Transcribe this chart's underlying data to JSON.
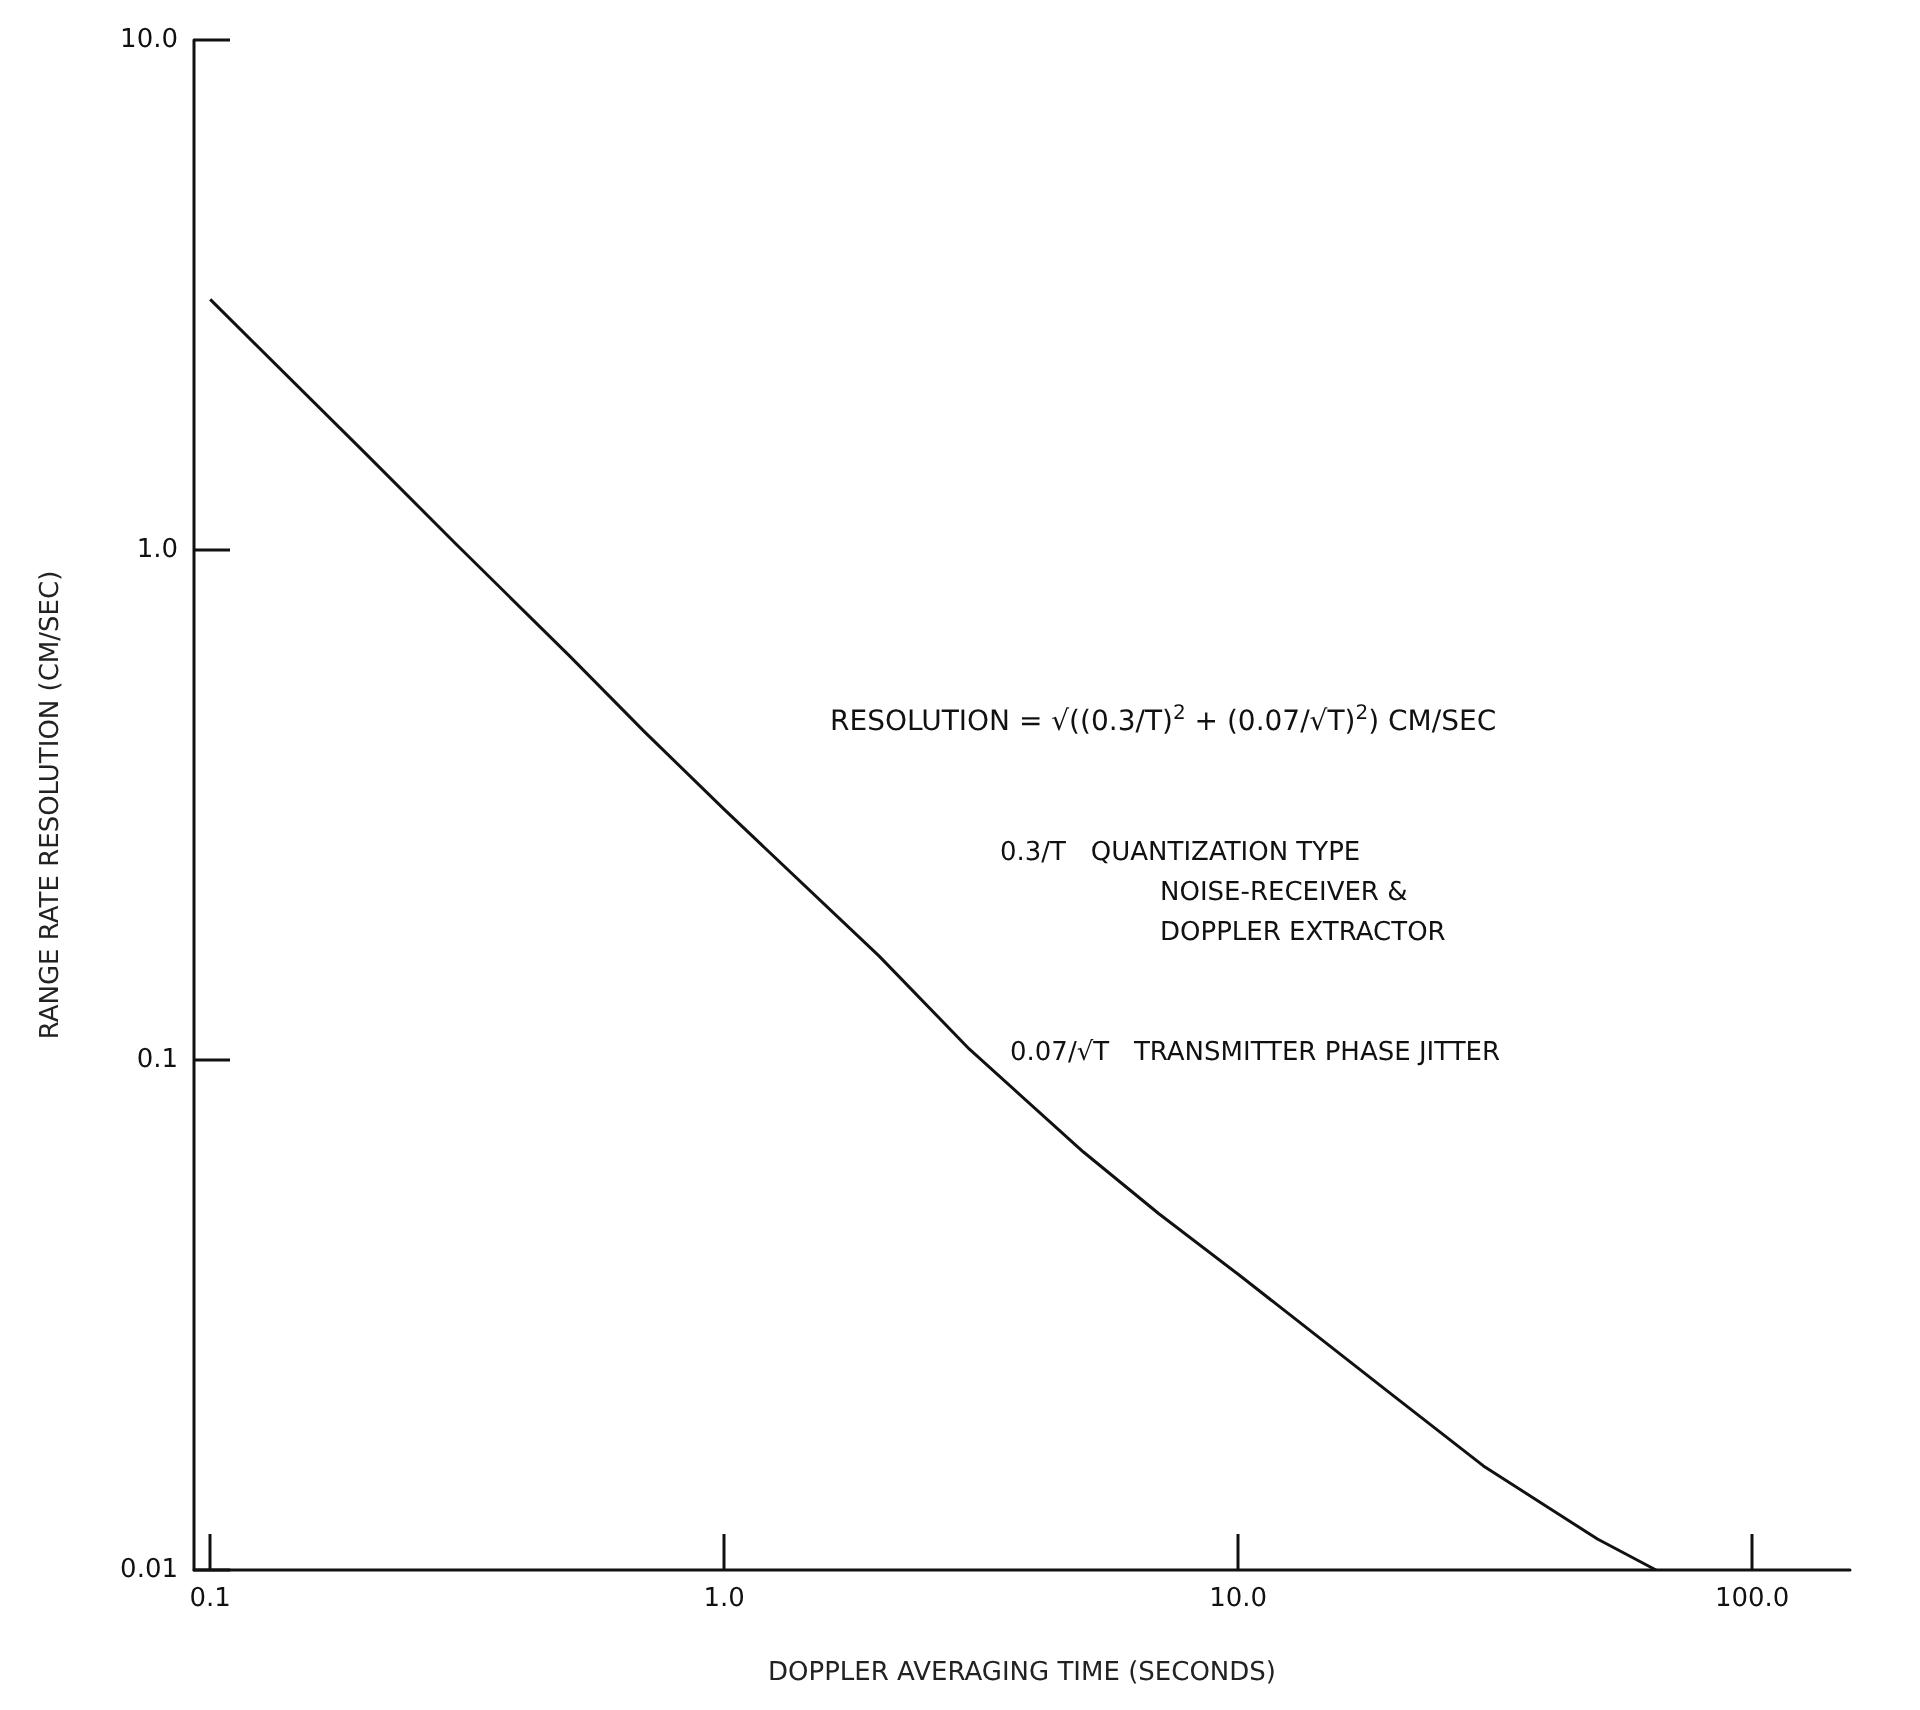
{
  "chart_data": {
    "type": "line",
    "xlabel": "DOPPLER AVERAGING TIME (SECONDS)",
    "ylabel": "RANGE RATE RESOLUTION (CM/SEC)",
    "log": "xy",
    "grid": false,
    "x": [
      0.1,
      0.2,
      0.3,
      0.5,
      0.7,
      1,
      2,
      3,
      5,
      7,
      10,
      20,
      30,
      50,
      65
    ],
    "series": [
      {
        "color": "#111111",
        "values": [
          3.1,
          1.55,
          1.03,
          0.62,
          0.44,
          0.31,
          0.16,
          0.105,
          0.066,
          0.05,
          0.038,
          0.022,
          0.016,
          0.0115,
          0.01
        ]
      }
    ],
    "xlim": [
      0.093,
      155
    ],
    "xticks": [
      {
        "value": 0.1,
        "label": "0.1"
      },
      {
        "value": 1,
        "label": "1.0"
      },
      {
        "value": 10,
        "label": "10.0"
      },
      {
        "value": 100,
        "label": "100.0"
      }
    ],
    "ylim": [
      0.01,
      10
    ],
    "yticks": [
      {
        "value": 0.01,
        "label": "0.01"
      },
      {
        "value": 0.1,
        "label": "0.1"
      },
      {
        "value": 1,
        "label": "1.0"
      },
      {
        "value": 10,
        "label": "10.0"
      }
    ],
    "annotations": [
      "RESOLUTION = √((0.3/T)$^{2}$ + (0.07/√T)$^{2}$) CM/SEC",
      "0.3/T   QUANTIZATION TYPE",
      "NOISE-RECEIVER &",
      "DOPPLER EXTRACTOR",
      "0.07/√T   TRANSMITTER PHASE JITTER"
    ]
  }
}
